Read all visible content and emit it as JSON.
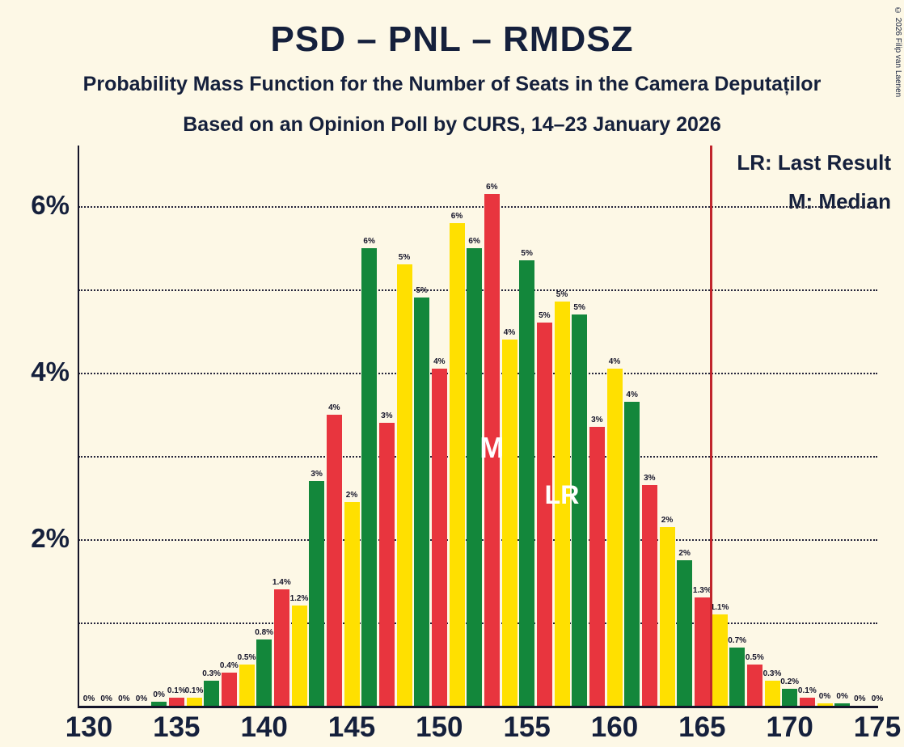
{
  "chart_data": {
    "type": "bar",
    "title": "PSD – PNL – RMDSZ",
    "subtitle": "Probability Mass Function for the Number of Seats in the Camera Deputaților",
    "source": "Based on an Opinion Poll by CURS, 14–23 January 2026",
    "copyright": "© 2026 Filip van Laenen",
    "legend": {
      "lr": "LR: Last Result",
      "median": "M: Median"
    },
    "xlim": [
      130,
      175
    ],
    "ylim": [
      0,
      6.7
    ],
    "x_ticks": [
      "130",
      "135",
      "140",
      "145",
      "150",
      "155",
      "160",
      "165",
      "170",
      "175"
    ],
    "y_ticks": [
      {
        "value": 2,
        "label": "2%"
      },
      {
        "value": 4,
        "label": "4%"
      },
      {
        "value": 6,
        "label": "6%"
      }
    ],
    "gridlines_pct": [
      1,
      2,
      3,
      4,
      5,
      6
    ],
    "grid_style": "dotted",
    "legend_position": "top-right",
    "colors": {
      "background": "#fdf8e6",
      "text": "#15203c",
      "red": "#e8353e",
      "yellow": "#ffe000",
      "green": "#13873b",
      "line": "#c0252c"
    },
    "bars": [
      {
        "s": 130,
        "c": "yellow",
        "v": 0,
        "l": "0%"
      },
      {
        "s": 131,
        "c": "green",
        "v": 0,
        "l": "0%"
      },
      {
        "s": 132,
        "c": "red",
        "v": 0,
        "l": "0%"
      },
      {
        "s": 133,
        "c": "yellow",
        "v": 0,
        "l": "0%"
      },
      {
        "s": 134,
        "c": "green",
        "v": 0.05,
        "l": "0%"
      },
      {
        "s": 135,
        "c": "red",
        "v": 0.1,
        "l": "0.1%"
      },
      {
        "s": 136,
        "c": "yellow",
        "v": 0.1,
        "l": "0.1%"
      },
      {
        "s": 137,
        "c": "green",
        "v": 0.3,
        "l": "0.3%"
      },
      {
        "s": 138,
        "c": "red",
        "v": 0.4,
        "l": "0.4%"
      },
      {
        "s": 139,
        "c": "yellow",
        "v": 0.5,
        "l": "0.5%"
      },
      {
        "s": 140,
        "c": "green",
        "v": 0.8,
        "l": "0.8%"
      },
      {
        "s": 141,
        "c": "red",
        "v": 1.4,
        "l": "1.4%"
      },
      {
        "s": 142,
        "c": "yellow",
        "v": 1.2,
        "l": "1.2%"
      },
      {
        "s": 143,
        "c": "green",
        "v": 2.7,
        "l": "3%"
      },
      {
        "s": 144,
        "c": "red",
        "v": 3.5,
        "l": "4%"
      },
      {
        "s": 145,
        "c": "yellow",
        "v": 2.45,
        "l": "2%"
      },
      {
        "s": 146,
        "c": "green",
        "v": 5.5,
        "l": "6%"
      },
      {
        "s": 147,
        "c": "red",
        "v": 3.4,
        "l": "3%"
      },
      {
        "s": 148,
        "c": "yellow",
        "v": 5.3,
        "l": "5%"
      },
      {
        "s": 149,
        "c": "green",
        "v": 4.9,
        "l": "5%"
      },
      {
        "s": 150,
        "c": "red",
        "v": 4.05,
        "l": "4%"
      },
      {
        "s": 151,
        "c": "yellow",
        "v": 5.8,
        "l": "6%"
      },
      {
        "s": 152,
        "c": "green",
        "v": 5.5,
        "l": "6%"
      },
      {
        "s": 153,
        "c": "red",
        "v": 6.15,
        "l": "6%"
      },
      {
        "s": 154,
        "c": "yellow",
        "v": 4.4,
        "l": "4%"
      },
      {
        "s": 155,
        "c": "green",
        "v": 5.35,
        "l": "5%"
      },
      {
        "s": 156,
        "c": "red",
        "v": 4.6,
        "l": "5%"
      },
      {
        "s": 157,
        "c": "yellow",
        "v": 4.85,
        "l": "5%"
      },
      {
        "s": 158,
        "c": "green",
        "v": 4.7,
        "l": "5%"
      },
      {
        "s": 159,
        "c": "red",
        "v": 3.35,
        "l": "3%"
      },
      {
        "s": 160,
        "c": "yellow",
        "v": 4.05,
        "l": "4%"
      },
      {
        "s": 161,
        "c": "green",
        "v": 3.65,
        "l": "4%"
      },
      {
        "s": 162,
        "c": "red",
        "v": 2.65,
        "l": "3%"
      },
      {
        "s": 163,
        "c": "yellow",
        "v": 2.15,
        "l": "2%"
      },
      {
        "s": 164,
        "c": "green",
        "v": 1.75,
        "l": "2%"
      },
      {
        "s": 165,
        "c": "red",
        "v": 1.3,
        "l": "1.3%"
      },
      {
        "s": 166,
        "c": "yellow",
        "v": 1.1,
        "l": "1.1%"
      },
      {
        "s": 167,
        "c": "green",
        "v": 0.7,
        "l": "0.7%"
      },
      {
        "s": 168,
        "c": "red",
        "v": 0.5,
        "l": "0.5%"
      },
      {
        "s": 169,
        "c": "yellow",
        "v": 0.3,
        "l": "0.3%"
      },
      {
        "s": 170,
        "c": "green",
        "v": 0.2,
        "l": "0.2%"
      },
      {
        "s": 171,
        "c": "red",
        "v": 0.1,
        "l": "0.1%"
      },
      {
        "s": 172,
        "c": "yellow",
        "v": 0.03,
        "l": "0%"
      },
      {
        "s": 173,
        "c": "green",
        "v": 0.03,
        "l": "0%"
      },
      {
        "s": 174,
        "c": "red",
        "v": 0,
        "l": "0%"
      },
      {
        "s": 175,
        "c": "yellow",
        "v": 0,
        "l": "0%"
      }
    ],
    "markers": {
      "median": {
        "seat": 153,
        "label": "M"
      },
      "last_result": {
        "seat": 157,
        "label": "LR"
      },
      "vertical_line_seat": 165.5
    }
  }
}
